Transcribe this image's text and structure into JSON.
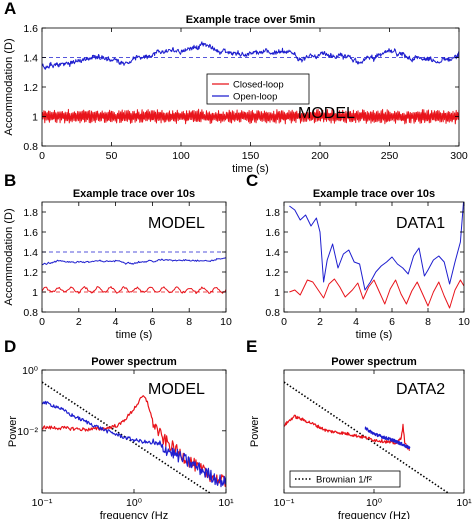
{
  "chart_data": [
    {
      "panel": "A",
      "type": "line",
      "title": "Example trace over 5min",
      "xlabel": "time (s)",
      "ylabel": "Accommodation (D)",
      "xlim": [
        0,
        300
      ],
      "ylim": [
        0.8,
        1.6
      ],
      "xticks": [
        0,
        50,
        100,
        150,
        200,
        250,
        300
      ],
      "yticks": [
        0.8,
        1,
        1.2,
        1.4,
        1.6
      ],
      "annotation": "MODEL",
      "legend": {
        "placement": "center-right",
        "entries": [
          "Closed-loop",
          "Open-loop"
        ]
      },
      "reference_lines": [
        1.4,
        1.0
      ],
      "series": [
        {
          "name": "Closed-loop",
          "color": "#e8141b",
          "x": [
            0,
            300
          ],
          "mean": 1.0,
          "noise": 0.05,
          "noise_type": "oscillation"
        },
        {
          "name": "Open-loop",
          "color": "#1f1fcf",
          "x": [
            0,
            20,
            40,
            60,
            80,
            100,
            115,
            130,
            150,
            170,
            190,
            210,
            230,
            250,
            270,
            285,
            300
          ],
          "y": [
            1.33,
            1.36,
            1.41,
            1.37,
            1.43,
            1.45,
            1.49,
            1.44,
            1.42,
            1.44,
            1.4,
            1.41,
            1.38,
            1.43,
            1.4,
            1.36,
            1.42
          ],
          "noise": 0.02
        }
      ]
    },
    {
      "panel": "B",
      "type": "line",
      "title": "Example trace over 10s",
      "xlabel": "time (s)",
      "ylabel": "Accommodation (D)",
      "xlim": [
        0,
        10
      ],
      "ylim": [
        0.8,
        1.9
      ],
      "xticks": [
        0,
        2,
        4,
        6,
        8,
        10
      ],
      "yticks": [
        0.8,
        1,
        1.2,
        1.4,
        1.6,
        1.8
      ],
      "annotation": "MODEL",
      "reference_lines": [
        1.4,
        1.0
      ],
      "series": [
        {
          "name": "Closed-loop",
          "color": "#e8141b",
          "x": [
            0,
            10
          ],
          "mean": 1.02,
          "noise": 0.035,
          "noise_type": "oscillation"
        },
        {
          "name": "Open-loop",
          "color": "#1f1fcf",
          "x": [
            0,
            1,
            2,
            3,
            4,
            5,
            6,
            7,
            8,
            9,
            10
          ],
          "y": [
            1.28,
            1.31,
            1.3,
            1.3,
            1.31,
            1.3,
            1.31,
            1.32,
            1.33,
            1.31,
            1.34
          ],
          "noise": 0.012
        }
      ]
    },
    {
      "panel": "C",
      "type": "line",
      "title": "Example trace over 10s",
      "xlabel": "time (s)",
      "ylabel": "",
      "xlim": [
        0,
        10
      ],
      "ylim": [
        0.8,
        1.9
      ],
      "xticks": [
        0,
        2,
        4,
        6,
        8,
        10
      ],
      "yticks": [
        0.8,
        1,
        1.2,
        1.4,
        1.6,
        1.8
      ],
      "annotation": "DATA1",
      "series": [
        {
          "name": "Closed-loop",
          "color": "#e8141b",
          "x": [
            0.3,
            0.6,
            0.9,
            1.3,
            1.6,
            1.9,
            2.2,
            2.5,
            2.8,
            3.1,
            3.4,
            3.8,
            4.1,
            4.4,
            4.7,
            5.0,
            5.3,
            5.6,
            5.9,
            6.2,
            6.5,
            6.8,
            7.1,
            7.4,
            7.7,
            8.0,
            8.3,
            8.6,
            8.9,
            9.2,
            9.5,
            9.8,
            10.0
          ],
          "y": [
            1.0,
            1.02,
            0.97,
            1.12,
            1.1,
            1.02,
            0.94,
            1.08,
            1.13,
            1.05,
            0.95,
            1.02,
            1.09,
            0.93,
            1.05,
            1.12,
            1.0,
            0.88,
            1.03,
            1.12,
            0.98,
            0.88,
            1.01,
            1.1,
            0.98,
            0.86,
            1.0,
            1.1,
            0.96,
            0.84,
            1.02,
            1.12,
            1.06
          ]
        },
        {
          "name": "Open-loop",
          "color": "#1f1fcf",
          "x": [
            0.3,
            0.6,
            0.9,
            1.2,
            1.5,
            1.8,
            2.0,
            2.2,
            2.4,
            2.7,
            3.0,
            3.3,
            3.6,
            3.9,
            4.2,
            4.5,
            4.8,
            5.1,
            5.4,
            5.7,
            6.0,
            6.3,
            6.6,
            6.9,
            7.2,
            7.5,
            7.8,
            8.0,
            8.3,
            8.6,
            8.9,
            9.2,
            9.5,
            9.8,
            10.0
          ],
          "y": [
            1.86,
            1.82,
            1.72,
            1.77,
            1.66,
            1.74,
            1.6,
            1.1,
            1.32,
            1.48,
            1.24,
            1.38,
            1.42,
            1.3,
            1.28,
            1.02,
            1.1,
            1.2,
            1.26,
            1.3,
            1.35,
            1.28,
            1.24,
            1.18,
            1.36,
            1.44,
            1.16,
            1.22,
            1.32,
            1.36,
            1.3,
            1.08,
            1.3,
            1.5,
            1.96
          ]
        }
      ]
    },
    {
      "panel": "D",
      "type": "line",
      "title": "Power spectrum",
      "xlabel": "frequency (Hz",
      "ylabel": "Power",
      "xscale": "log",
      "yscale": "log",
      "xlim": [
        0.1,
        10
      ],
      "ylim": [
        9e-05,
        1
      ],
      "xticks": [
        0.1,
        1,
        10
      ],
      "xticklabels": [
        "10⁻¹",
        "10⁰",
        "10¹"
      ],
      "yticks": [
        0.01,
        1
      ],
      "yticklabels": [
        "10⁻²",
        "10⁰"
      ],
      "annotation": "MODEL",
      "series": [
        {
          "name": "Brownian 1/f²",
          "color": "#000000",
          "style": "dotted",
          "x": [
            0.1,
            10
          ],
          "y": [
            0.4,
            4e-05
          ]
        },
        {
          "name": "Closed-loop",
          "color": "#e8141b",
          "x": [
            0.1,
            0.2,
            0.3,
            0.5,
            0.7,
            0.9,
            1.1,
            1.25,
            1.4,
            1.6,
            2.0,
            3.0,
            5.0,
            8.0,
            10.0
          ],
          "y": [
            0.013,
            0.012,
            0.011,
            0.012,
            0.016,
            0.035,
            0.08,
            0.14,
            0.09,
            0.02,
            0.006,
            0.002,
            0.0006,
            0.00025,
            0.0002
          ]
        },
        {
          "name": "Open-loop",
          "color": "#1f1fcf",
          "x": [
            0.1,
            0.15,
            0.2,
            0.3,
            0.5,
            0.8,
            1.0,
            1.5,
            2.0,
            3.0,
            5.0,
            8.0,
            10.0
          ],
          "y": [
            0.09,
            0.06,
            0.035,
            0.02,
            0.01,
            0.006,
            0.005,
            0.004,
            0.003,
            0.0015,
            0.0006,
            0.00025,
            0.0002
          ]
        }
      ]
    },
    {
      "panel": "E",
      "type": "line",
      "title": "Power spectrum",
      "xlabel": "frequency (Hz)",
      "ylabel": "Power",
      "xscale": "log",
      "yscale": "log",
      "xlim": [
        0.1,
        10
      ],
      "ylim": [
        9e-05,
        1
      ],
      "xticks": [
        0.1,
        1,
        10
      ],
      "xticklabels": [
        "10⁻¹",
        "10⁰",
        "10¹"
      ],
      "annotation": "DATA2",
      "legend": {
        "placement": "bottom-left",
        "entries": [
          "Brownian 1/f²"
        ]
      },
      "series": [
        {
          "name": "Brownian 1/f²",
          "color": "#000000",
          "style": "dotted",
          "x": [
            0.1,
            10
          ],
          "y": [
            0.4,
            4e-05
          ]
        },
        {
          "name": "Closed-loop",
          "color": "#e8141b",
          "x": [
            0.1,
            0.13,
            0.2,
            0.3,
            0.5,
            0.8,
            1.0,
            1.3,
            1.6,
            1.8,
            2.0,
            2.1,
            2.2,
            2.3,
            2.5
          ],
          "y": [
            0.015,
            0.03,
            0.018,
            0.01,
            0.008,
            0.006,
            0.005,
            0.0045,
            0.004,
            0.004,
            0.006,
            0.015,
            0.004,
            0.003,
            0.0025
          ]
        },
        {
          "name": "Open-loop",
          "color": "#1f1fcf",
          "x": [
            0.8,
            1.0,
            1.3,
            1.6,
            1.9,
            2.1,
            2.3,
            2.5
          ],
          "y": [
            0.012,
            0.008,
            0.006,
            0.005,
            0.004,
            0.0035,
            0.003,
            0.0028
          ]
        }
      ]
    }
  ]
}
